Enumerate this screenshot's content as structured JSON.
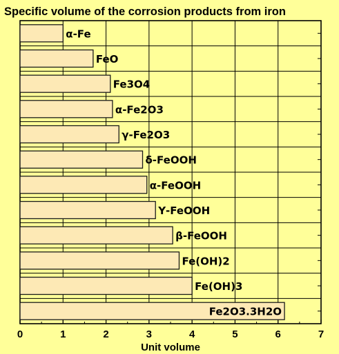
{
  "chart_data": {
    "type": "bar",
    "orientation": "horizontal",
    "title": "Specific volume of the corrosion products from iron",
    "xlabel": "Unit volume",
    "ylabel": "",
    "xlim": [
      0,
      7
    ],
    "x_ticks": [
      "0",
      "1",
      "2",
      "3",
      "4",
      "5",
      "6",
      "7"
    ],
    "grid": true,
    "categories": [
      "α-Fe",
      "FeO",
      "Fe3O4",
      "α-Fe2O3",
      "γ-Fe2O3",
      "δ-FeOOH",
      "α-FeOOH",
      "Υ-FeOOH",
      "β-FeOOH",
      "Fe(OH)2",
      "Fe(OH)3",
      "Fe2O3.3H2O"
    ],
    "values": [
      1.0,
      1.7,
      2.1,
      2.15,
      2.3,
      2.85,
      2.95,
      3.15,
      3.55,
      3.7,
      4.0,
      6.15
    ],
    "label_inside": [
      false,
      false,
      false,
      false,
      false,
      false,
      false,
      false,
      false,
      false,
      false,
      true
    ]
  },
  "colors": {
    "background": "#ffff99",
    "bar_fill": "#fde9b5",
    "bar_stroke": "#1a1a1a",
    "grid": "#000000",
    "text": "#000000"
  }
}
